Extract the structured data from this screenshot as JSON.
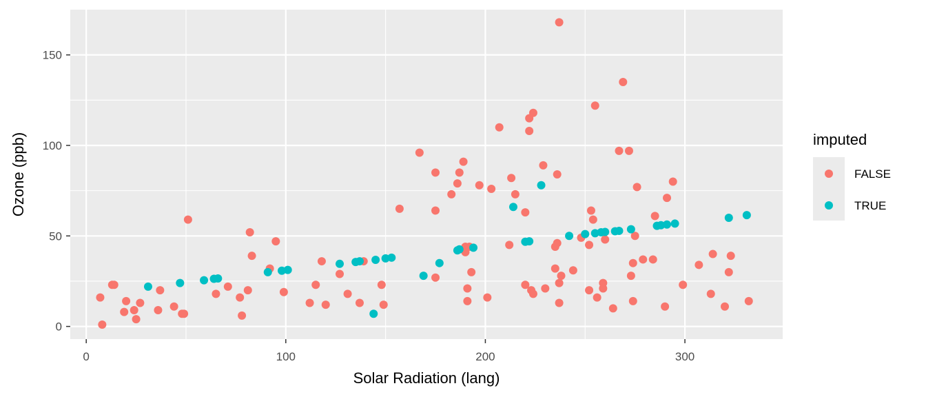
{
  "chart_data": {
    "type": "scatter",
    "xlabel": "Solar Radiation (lang)",
    "ylabel": "Ozone (ppb)",
    "xlim": [
      -8,
      349
    ],
    "ylim": [
      -7,
      175
    ],
    "x_ticks": [
      0,
      100,
      200,
      300
    ],
    "x_tick_labels": [
      "0",
      "100",
      "200",
      "300"
    ],
    "y_ticks": [
      0,
      50,
      100,
      150
    ],
    "y_tick_labels": [
      "0",
      "50",
      "100",
      "150"
    ],
    "grid": true,
    "legend": {
      "title": "imputed",
      "position": "right"
    },
    "series": [
      {
        "name": "FALSE",
        "color": "#F8766D",
        "points": [
          [
            7,
            16
          ],
          [
            8,
            1
          ],
          [
            13,
            23
          ],
          [
            14,
            23
          ],
          [
            19,
            8
          ],
          [
            20,
            14
          ],
          [
            24,
            9
          ],
          [
            25,
            4
          ],
          [
            27,
            13
          ],
          [
            36,
            9
          ],
          [
            37,
            20
          ],
          [
            44,
            11
          ],
          [
            48,
            7
          ],
          [
            49,
            7
          ],
          [
            51,
            59
          ],
          [
            65,
            18
          ],
          [
            71,
            22
          ],
          [
            77,
            16
          ],
          [
            78,
            6
          ],
          [
            81,
            20
          ],
          [
            82,
            52
          ],
          [
            83,
            39
          ],
          [
            92,
            32
          ],
          [
            95,
            47
          ],
          [
            99,
            19
          ],
          [
            112,
            13
          ],
          [
            115,
            23
          ],
          [
            118,
            36
          ],
          [
            120,
            12
          ],
          [
            127,
            29
          ],
          [
            131,
            18
          ],
          [
            137,
            13
          ],
          [
            139,
            36
          ],
          [
            148,
            23
          ],
          [
            149,
            12
          ],
          [
            157,
            65
          ],
          [
            167,
            96
          ],
          [
            175,
            27
          ],
          [
            175,
            85
          ],
          [
            175,
            64
          ],
          [
            183,
            73
          ],
          [
            186,
            79
          ],
          [
            187,
            85
          ],
          [
            189,
            91
          ],
          [
            190,
            44
          ],
          [
            190,
            41
          ],
          [
            191,
            14
          ],
          [
            191,
            21
          ],
          [
            192,
            44
          ],
          [
            193,
            30
          ],
          [
            197,
            78
          ],
          [
            201,
            16
          ],
          [
            203,
            76
          ],
          [
            207,
            110
          ],
          [
            212,
            45
          ],
          [
            213,
            82
          ],
          [
            215,
            73
          ],
          [
            220,
            63
          ],
          [
            220,
            23
          ],
          [
            222,
            115
          ],
          [
            222,
            108
          ],
          [
            223,
            20
          ],
          [
            224,
            118
          ],
          [
            224,
            18
          ],
          [
            229,
            89
          ],
          [
            230,
            21
          ],
          [
            235,
            32
          ],
          [
            235,
            44
          ],
          [
            236,
            46
          ],
          [
            236,
            84
          ],
          [
            237,
            168
          ],
          [
            237,
            13
          ],
          [
            237,
            24
          ],
          [
            238,
            28
          ],
          [
            244,
            31
          ],
          [
            248,
            49
          ],
          [
            252,
            45
          ],
          [
            252,
            20
          ],
          [
            253,
            64
          ],
          [
            254,
            59
          ],
          [
            255,
            122
          ],
          [
            256,
            16
          ],
          [
            259,
            24
          ],
          [
            259,
            21
          ],
          [
            260,
            48
          ],
          [
            264,
            10
          ],
          [
            267,
            97
          ],
          [
            269,
            135
          ],
          [
            272,
            97
          ],
          [
            273,
            28
          ],
          [
            274,
            35
          ],
          [
            274,
            14
          ],
          [
            275,
            50
          ],
          [
            276,
            77
          ],
          [
            279,
            37
          ],
          [
            284,
            37
          ],
          [
            285,
            61
          ],
          [
            290,
            11
          ],
          [
            291,
            71
          ],
          [
            294,
            80
          ],
          [
            299,
            23
          ],
          [
            307,
            34
          ],
          [
            313,
            18
          ],
          [
            314,
            40
          ],
          [
            320,
            11
          ],
          [
            322,
            30
          ],
          [
            323,
            39
          ],
          [
            332,
            14
          ]
        ]
      },
      {
        "name": "TRUE",
        "color": "#00BFC4",
        "points": [
          [
            31,
            22
          ],
          [
            47,
            24
          ],
          [
            59,
            25.5
          ],
          [
            64,
            26.3
          ],
          [
            66,
            26.5
          ],
          [
            91,
            30
          ],
          [
            98,
            30.8
          ],
          [
            101,
            31.2
          ],
          [
            127,
            34.6
          ],
          [
            135,
            35.6
          ],
          [
            137,
            36
          ],
          [
            144,
            7
          ],
          [
            145,
            36.8
          ],
          [
            150,
            37.6
          ],
          [
            153,
            38
          ],
          [
            169,
            28
          ],
          [
            177,
            35
          ],
          [
            186,
            42
          ],
          [
            187,
            42.6
          ],
          [
            194,
            43.5
          ],
          [
            214,
            66
          ],
          [
            220,
            46.8
          ],
          [
            222,
            47
          ],
          [
            228,
            78
          ],
          [
            242,
            50
          ],
          [
            250,
            51
          ],
          [
            255,
            51.5
          ],
          [
            258,
            52
          ],
          [
            260,
            52.2
          ],
          [
            265,
            52.6
          ],
          [
            267,
            52.8
          ],
          [
            273,
            53.7
          ],
          [
            286,
            55.6
          ],
          [
            288,
            55.9
          ],
          [
            291,
            56.3
          ],
          [
            295,
            56.8
          ],
          [
            322,
            60
          ],
          [
            331,
            61.5
          ]
        ]
      }
    ]
  }
}
